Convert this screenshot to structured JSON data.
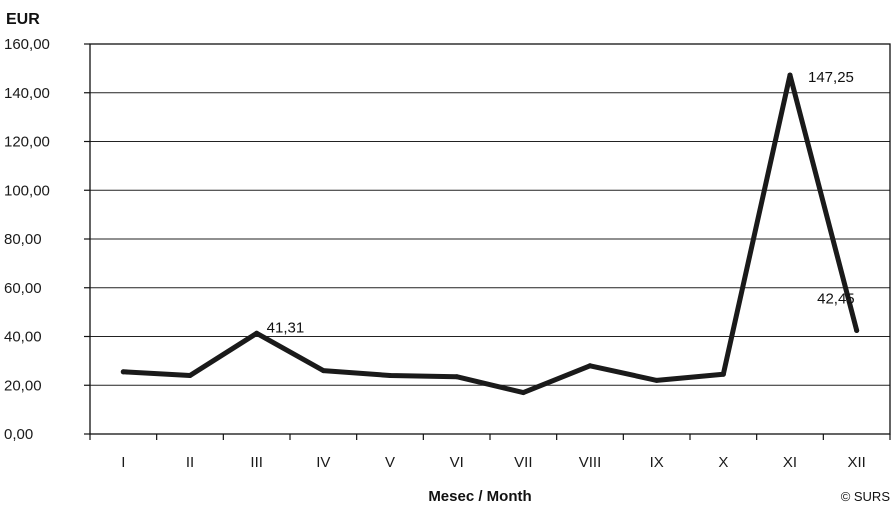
{
  "chart_data": {
    "type": "line",
    "ylabel": "EUR",
    "xlabel": "Mesec / Month",
    "categories": [
      "I",
      "II",
      "III",
      "IV",
      "V",
      "VI",
      "VII",
      "VIII",
      "IX",
      "X",
      "XI",
      "XII"
    ],
    "series": [
      {
        "values": [
          25.5,
          24.0,
          41.31,
          26.0,
          24.0,
          23.5,
          17.0,
          28.0,
          22.0,
          24.5,
          147.25,
          42.45
        ]
      }
    ],
    "ylim": [
      0,
      160
    ],
    "yticks": [
      "0,00",
      "20,00",
      "40,00",
      "60,00",
      "80,00",
      "100,00",
      "120,00",
      "140,00",
      "160,00"
    ],
    "data_labels": [
      {
        "category": "III",
        "text": "41,31"
      },
      {
        "category": "XI",
        "text": "147,25"
      },
      {
        "category": "XII",
        "text": "42,45"
      }
    ],
    "grid": true,
    "line_color": "#1a1a1a"
  },
  "credit": "© SURS"
}
